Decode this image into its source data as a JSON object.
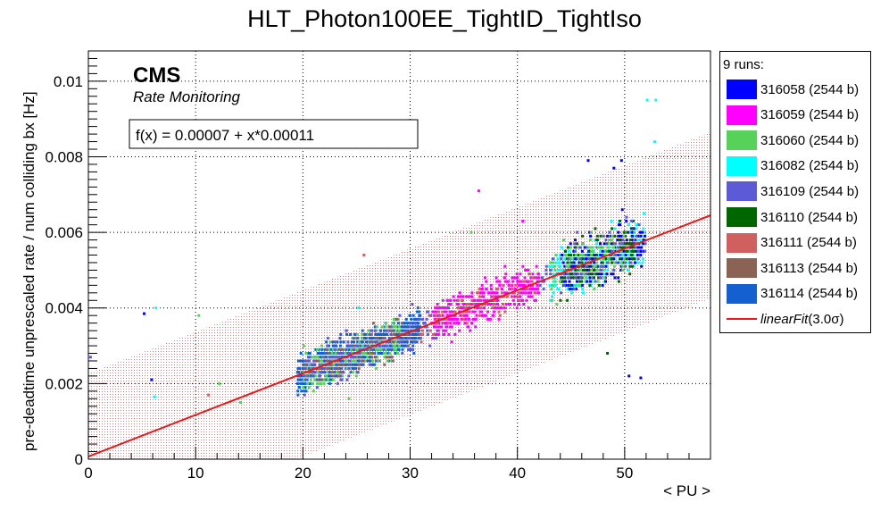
{
  "chart_data": {
    "type": "scatter",
    "title": "HLT_Photon100EE_TightID_TightIso",
    "xlabel": "< PU >",
    "ylabel": "pre-deadtime unprescaled rate / num colliding bx [Hz]",
    "xlim": [
      0,
      58
    ],
    "ylim": [
      0,
      0.0108
    ],
    "xticks": [
      "0",
      "10",
      "20",
      "30",
      "40",
      "50"
    ],
    "yticks": [
      "0",
      "0.002",
      "0.004",
      "0.006",
      "0.008",
      "0.01"
    ],
    "grid": true,
    "cms_label": "CMS",
    "cms_sublabel": "Rate Monitoring",
    "fit_formula": "f(x) = 0.00007 + x*0.00011",
    "fit": {
      "intercept": 7e-05,
      "slope": 0.00011,
      "x_range": [
        0,
        58
      ],
      "band_halfwidth": 0.0022,
      "color": "#e8191a"
    },
    "legend_header": "9 runs:",
    "legend_position": "right",
    "series": [
      {
        "name": "316058 (2544 b)",
        "color": "#0000ff"
      },
      {
        "name": "316059 (2544 b)",
        "color": "#ff00ff"
      },
      {
        "name": "316060 (2544 b)",
        "color": "#56d15a"
      },
      {
        "name": "316082 (2544 b)",
        "color": "#00ffff"
      },
      {
        "name": "316109 (2544 b)",
        "color": "#5c5ad6"
      },
      {
        "name": "316110 (2544 b)",
        "color": "#006600"
      },
      {
        "name": "316111 (2544 b)",
        "color": "#d06060"
      },
      {
        "name": "316113 (2544 b)",
        "color": "#8b6355"
      },
      {
        "name": "316114 (2544 b)",
        "color": "#1460d0"
      }
    ],
    "fit_legend_label": "linearFit",
    "fit_legend_suffix": "(3.0σ)",
    "clusters": [
      {
        "series": 8,
        "x_range": [
          19.5,
          31
        ],
        "y_offset_sd": 0.00045,
        "count": 900
      },
      {
        "series": 2,
        "x_range": [
          20,
          29
        ],
        "y_offset_sd": 0.0006,
        "count": 220
      },
      {
        "series": 4,
        "x_range": [
          20,
          34
        ],
        "y_offset_sd": 0.0005,
        "count": 200
      },
      {
        "series": 7,
        "x_range": [
          20,
          30
        ],
        "y_offset_sd": 0.0005,
        "count": 60
      },
      {
        "series": 1,
        "x_range": [
          32,
          42
        ],
        "y_offset_sd": 0.0005,
        "count": 420
      },
      {
        "series": 6,
        "x_range": [
          31,
          42
        ],
        "y_offset_sd": 0.0004,
        "count": 80
      },
      {
        "series": 3,
        "x_range": [
          43,
          52
        ],
        "y_offset_sd": 0.0006,
        "count": 260
      },
      {
        "series": 0,
        "x_range": [
          44,
          52
        ],
        "y_offset_sd": 0.0007,
        "count": 200
      },
      {
        "series": 5,
        "x_range": [
          44,
          51
        ],
        "y_offset_sd": 0.0007,
        "count": 160
      },
      {
        "series": 2,
        "x_range": [
          43,
          50
        ],
        "y_offset_sd": 0.0007,
        "count": 90
      },
      {
        "series": 4,
        "x_range": [
          42,
          52
        ],
        "y_offset_sd": 0.0006,
        "count": 80
      }
    ],
    "outliers": [
      {
        "x": 0.2,
        "y": 0.0027,
        "series": 4
      },
      {
        "x": 5.2,
        "y": 0.00385,
        "series": 0
      },
      {
        "x": 6.3,
        "y": 0.004,
        "series": 3
      },
      {
        "x": 6.2,
        "y": 0.00165,
        "series": 3
      },
      {
        "x": 5.9,
        "y": 0.0021,
        "series": 0
      },
      {
        "x": 10.3,
        "y": 0.0038,
        "series": 2
      },
      {
        "x": 11.2,
        "y": 0.0017,
        "series": 6
      },
      {
        "x": 14.2,
        "y": 0.0015,
        "series": 2
      },
      {
        "x": 25.7,
        "y": 0.0054,
        "series": 6
      },
      {
        "x": 25.2,
        "y": 0.004,
        "series": 3
      },
      {
        "x": 35.7,
        "y": 0.006,
        "series": 2
      },
      {
        "x": 40.5,
        "y": 0.0063,
        "series": 1
      },
      {
        "x": 36.4,
        "y": 0.0071,
        "series": 1
      },
      {
        "x": 49.7,
        "y": 0.0079,
        "series": 0
      },
      {
        "x": 52.1,
        "y": 0.0095,
        "series": 3
      },
      {
        "x": 52.9,
        "y": 0.0095,
        "series": 3
      },
      {
        "x": 52.8,
        "y": 0.0084,
        "series": 3
      },
      {
        "x": 49.0,
        "y": 0.0077,
        "series": 0
      },
      {
        "x": 50.4,
        "y": 0.0022,
        "series": 0
      },
      {
        "x": 51.5,
        "y": 0.00215,
        "series": 0
      },
      {
        "x": 48.4,
        "y": 0.0028,
        "series": 5
      },
      {
        "x": 46.6,
        "y": 0.0079,
        "series": 0
      },
      {
        "x": 24.3,
        "y": 0.0016,
        "series": 2
      },
      {
        "x": 12.2,
        "y": 0.002,
        "series": 2
      }
    ]
  }
}
